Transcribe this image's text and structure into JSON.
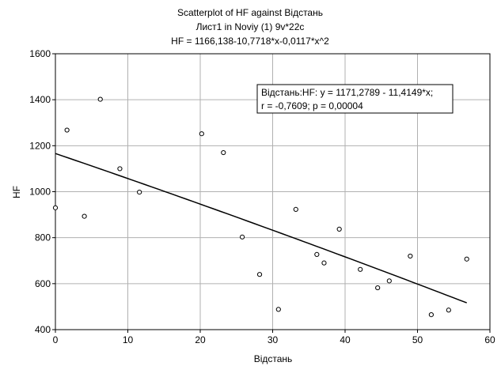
{
  "chart_data": {
    "type": "scatter",
    "title": "Scatterplot of HF against Відстань",
    "subtitle_lines": [
      "Лист1 in Noviy (1) 9v*22c",
      "HF = 1166,138-10,7718*x-0,0117*x^2"
    ],
    "xlabel": "Відстань",
    "ylabel": "HF",
    "xlim": [
      0,
      60
    ],
    "ylim": [
      400,
      1600
    ],
    "x_ticks": [
      "0",
      "10",
      "20",
      "30",
      "40",
      "50",
      "60"
    ],
    "y_ticks": [
      "400",
      "600",
      "800",
      "1000",
      "1200",
      "1400",
      "1600"
    ],
    "grid": true,
    "points": [
      {
        "x": 0,
        "y": 930
      },
      {
        "x": 1.6,
        "y": 1268
      },
      {
        "x": 4.0,
        "y": 893
      },
      {
        "x": 6.2,
        "y": 1402
      },
      {
        "x": 8.9,
        "y": 1100
      },
      {
        "x": 11.6,
        "y": 998
      },
      {
        "x": 20.2,
        "y": 1252
      },
      {
        "x": 23.2,
        "y": 1170
      },
      {
        "x": 25.8,
        "y": 803
      },
      {
        "x": 28.2,
        "y": 640
      },
      {
        "x": 30.8,
        "y": 488
      },
      {
        "x": 33.2,
        "y": 923
      },
      {
        "x": 36.1,
        "y": 727
      },
      {
        "x": 37.1,
        "y": 690
      },
      {
        "x": 39.2,
        "y": 837
      },
      {
        "x": 42.1,
        "y": 662
      },
      {
        "x": 44.5,
        "y": 582
      },
      {
        "x": 46.1,
        "y": 612
      },
      {
        "x": 49.0,
        "y": 720
      },
      {
        "x": 51.9,
        "y": 465
      },
      {
        "x": 54.3,
        "y": 485
      },
      {
        "x": 56.8,
        "y": 707
      }
    ],
    "fit": {
      "intercept": 1166.138,
      "b1": -10.7718,
      "b2": -0.0117,
      "x_range": [
        0,
        56.8
      ]
    },
    "annotation_lines": [
      "Відстань:HF:   y = 1171,2789 - 11,4149*x;",
      "r = -0,7609; p = 0,00004"
    ],
    "annotation_position": "top-right"
  }
}
